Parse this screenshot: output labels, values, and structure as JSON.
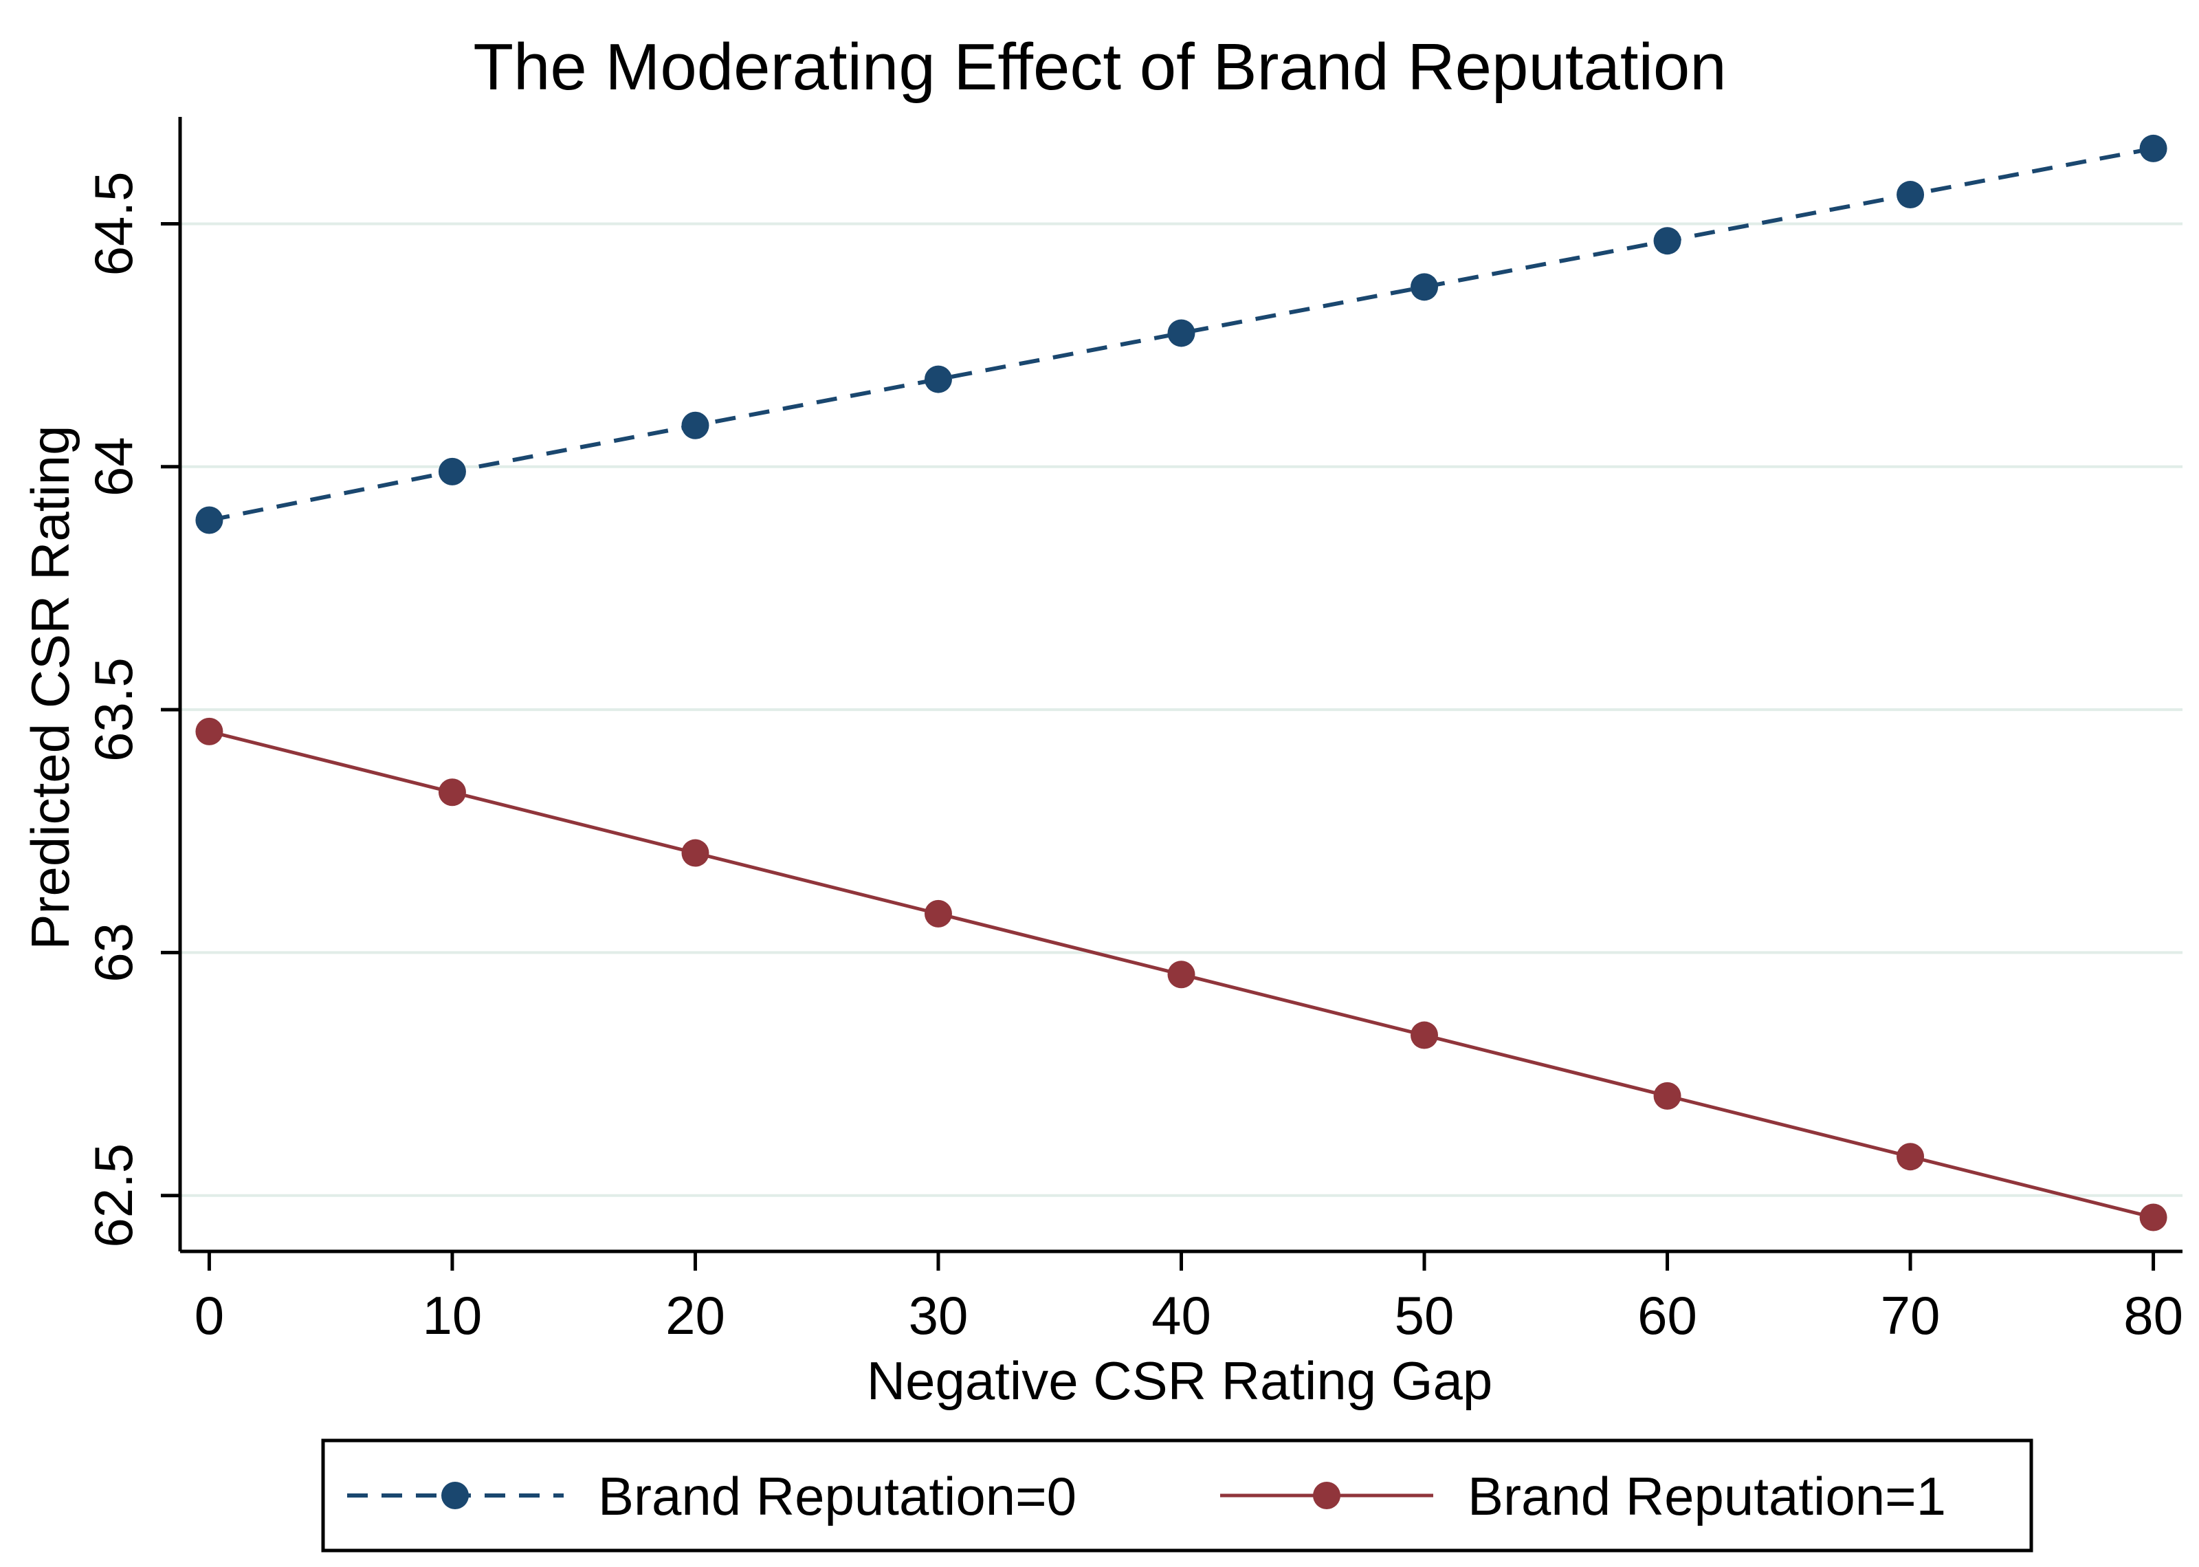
{
  "chart_data": {
    "type": "line",
    "title": "The Moderating Effect of Brand Reputation",
    "xlabel": "Negative CSR Rating Gap",
    "ylabel": "Predicted CSR Rating",
    "x": [
      0,
      10,
      20,
      30,
      40,
      50,
      60,
      70,
      80
    ],
    "xticks": [
      0,
      10,
      20,
      30,
      40,
      50,
      60,
      70,
      80
    ],
    "xtick_labels": [
      "0",
      "10",
      "20",
      "30",
      "40",
      "50",
      "60",
      "70",
      "80"
    ],
    "yticks": [
      62.5,
      63,
      63.5,
      64,
      64.5
    ],
    "ytick_labels": [
      "62.5",
      "63",
      "63.5",
      "64",
      "64.5"
    ],
    "xlim": [
      -1.2,
      81.2
    ],
    "ylim": [
      62.385,
      64.72
    ],
    "grid": true,
    "legend_position": "bottom",
    "series": [
      {
        "name": "Brand Reputation=0",
        "line_style": "dashed",
        "color": "#1a476f",
        "values": [
          63.89,
          63.99,
          64.085,
          64.18,
          64.275,
          64.37,
          64.465,
          64.56,
          64.655
        ]
      },
      {
        "name": "Brand Reputation=1",
        "line_style": "solid",
        "color": "#90353b",
        "values": [
          63.455,
          63.33,
          63.205,
          63.08,
          62.955,
          62.83,
          62.705,
          62.58,
          62.455
        ]
      }
    ],
    "colors": {
      "gridline": "#e1ede8",
      "axis": "#000000",
      "background": "#ffffff"
    }
  }
}
